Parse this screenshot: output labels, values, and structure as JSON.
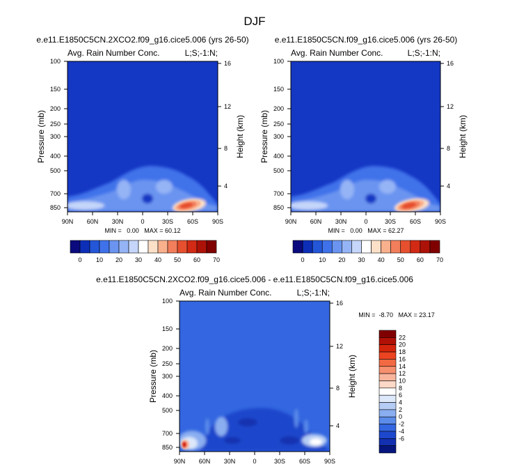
{
  "title": "DJF",
  "chart_data": [
    {
      "type": "heatmap",
      "title": "e.e11.E1850C5CN.2XCO2.f09_g16.cice5.006 (yrs 26-50)",
      "subtitle_left": "Avg. Rain Number Conc.",
      "subtitle_right": "L;S;-1:N;",
      "xlabel": "",
      "ylabel": "Pressure (mb)",
      "ylabel_right": "Height (km)",
      "x_ticks": [
        "90N",
        "60N",
        "30N",
        "0",
        "30S",
        "60S",
        "90S"
      ],
      "y_ticks": [
        "100",
        "150",
        "200",
        "250",
        "300",
        "400",
        "500",
        "700",
        "850"
      ],
      "y_ticks_right": [
        "16",
        "12",
        "8",
        "4"
      ],
      "min_max": "MIN =   0.00   MAX = 60.12",
      "min": 0.0,
      "max": 60.12,
      "colorbar_labels": [
        "0",
        "10",
        "20",
        "30",
        "40",
        "50",
        "60",
        "70"
      ]
    },
    {
      "type": "heatmap",
      "title": "e.e11.E1850C5CN.f09_g16.cice5.006 (yrs 26-50)",
      "subtitle_left": "Avg. Rain Number Conc.",
      "subtitle_right": "L;S;-1:N;",
      "xlabel": "",
      "ylabel": "Pressure (mb)",
      "ylabel_right": "Height (km)",
      "x_ticks": [
        "90N",
        "60N",
        "30N",
        "0",
        "30S",
        "60S",
        "90S"
      ],
      "y_ticks": [
        "100",
        "150",
        "200",
        "250",
        "300",
        "400",
        "500",
        "700",
        "850"
      ],
      "y_ticks_right": [
        "16",
        "12",
        "8",
        "4"
      ],
      "min_max": "MIN =   0.00   MAX = 62.27",
      "min": 0.0,
      "max": 62.27,
      "colorbar_labels": [
        "0",
        "10",
        "20",
        "30",
        "40",
        "50",
        "60",
        "70"
      ]
    },
    {
      "type": "heatmap",
      "title": "e.e11.E1850C5CN.2XCO2.f09_g16.cice5.006 - e.e11.E1850C5CN.f09_g16.cice5.006",
      "subtitle_left": "Avg. Rain Number Conc.",
      "subtitle_right": "L;S;-1:N;",
      "xlabel": "",
      "ylabel": "Pressure (mb)",
      "ylabel_right": "Height (km)",
      "x_ticks": [
        "90N",
        "60N",
        "30N",
        "0",
        "30S",
        "60S",
        "90S"
      ],
      "y_ticks": [
        "100",
        "150",
        "200",
        "250",
        "300",
        "400",
        "500",
        "700",
        "850"
      ],
      "y_ticks_right": [
        "16",
        "12",
        "8",
        "4"
      ],
      "min_max": "MIN =  -8.70   MAX = 23.17",
      "min": -8.7,
      "max": 23.17,
      "colorbar_labels": [
        "22",
        "20",
        "18",
        "16",
        "14",
        "12",
        "10",
        "8",
        "6",
        "4",
        "2",
        "0",
        "-2",
        "-4",
        "-6"
      ]
    }
  ],
  "colors": {
    "scale": [
      "#0a0a7e",
      "#0d2fb8",
      "#2456d8",
      "#3f72ea",
      "#6a94f0",
      "#95b4f5",
      "#c5d6fa",
      "#ffffff",
      "#fde0c8",
      "#f9b08d",
      "#f27e5c",
      "#e6502f",
      "#d22a14",
      "#ad1208",
      "#800000"
    ],
    "diff_scale": [
      "#800000",
      "#b01005",
      "#d4250c",
      "#ec4420",
      "#f26a44",
      "#f6906e",
      "#f9b59c",
      "#fcd8c7",
      "#ffffff",
      "#dde8fa",
      "#b5ccf4",
      "#8aaef0",
      "#5c8cea",
      "#3366e0",
      "#1d47cc",
      "#1230b0",
      "#06167e"
    ],
    "background_field": "#1437c4"
  }
}
